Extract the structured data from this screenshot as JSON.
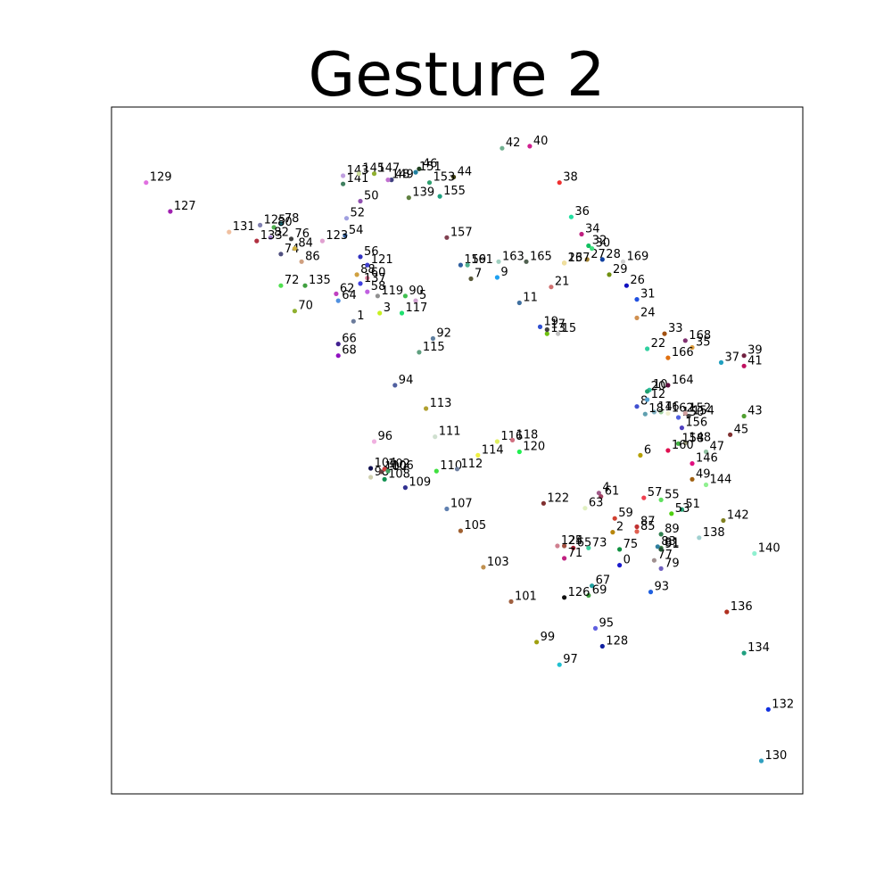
{
  "chart_data": {
    "type": "scatter",
    "title": "Gesture 2",
    "xlabel": "",
    "ylabel": "",
    "axes_visible": false,
    "grid": false,
    "xlim": [
      0,
      100
    ],
    "ylim": [
      0,
      100
    ],
    "points": [
      {
        "label": "0",
        "x": 73.5,
        "y": 33.3,
        "color": "#1a1acc"
      },
      {
        "label": "1",
        "x": 35.0,
        "y": 68.8,
        "color": "#6b7b9b"
      },
      {
        "label": "2",
        "x": 72.5,
        "y": 38.1,
        "color": "#b8860b"
      },
      {
        "label": "3",
        "x": 38.8,
        "y": 70.0,
        "color": "#c8f020"
      },
      {
        "label": "4",
        "x": 70.5,
        "y": 43.8,
        "color": "#a05a8a"
      },
      {
        "label": "5",
        "x": 44.0,
        "y": 71.8,
        "color": "#d0a0d0"
      },
      {
        "label": "6",
        "x": 76.5,
        "y": 49.3,
        "color": "#b5a000"
      },
      {
        "label": "7",
        "x": 52.0,
        "y": 75.0,
        "color": "#5a5a3a"
      },
      {
        "label": "8",
        "x": 76.0,
        "y": 56.4,
        "color": "#4050d0"
      },
      {
        "label": "9",
        "x": 55.8,
        "y": 75.2,
        "color": "#1ea0f0"
      },
      {
        "label": "10",
        "x": 77.8,
        "y": 58.8,
        "color": "#30c0a0"
      },
      {
        "label": "11",
        "x": 59.0,
        "y": 71.5,
        "color": "#4070a0"
      },
      {
        "label": "12",
        "x": 77.5,
        "y": 57.4,
        "color": "#50a0d0"
      },
      {
        "label": "13",
        "x": 63.0,
        "y": 67.0,
        "color": "#70c010"
      },
      {
        "label": "14",
        "x": 78.5,
        "y": 55.6,
        "color": "#80b0c0"
      },
      {
        "label": "15",
        "x": 64.6,
        "y": 67.0,
        "color": "#c0c0c0"
      },
      {
        "label": "16",
        "x": 79.5,
        "y": 55.6,
        "color": "#a0d0a0"
      },
      {
        "label": "17",
        "x": 63.0,
        "y": 67.6,
        "color": "#404040"
      },
      {
        "label": "18",
        "x": 77.2,
        "y": 55.3,
        "color": "#60a0b0"
      },
      {
        "label": "19",
        "x": 62.0,
        "y": 68.0,
        "color": "#3050d0"
      },
      {
        "label": "20",
        "x": 77.5,
        "y": 58.6,
        "color": "#20a070"
      },
      {
        "label": "21",
        "x": 63.6,
        "y": 73.8,
        "color": "#d07070"
      },
      {
        "label": "22",
        "x": 77.5,
        "y": 64.8,
        "color": "#30d0a0"
      },
      {
        "label": "23",
        "x": 65.5,
        "y": 77.3,
        "color": "#d0a020"
      },
      {
        "label": "24",
        "x": 76.0,
        "y": 69.3,
        "color": "#d09050"
      },
      {
        "label": "25",
        "x": 65.5,
        "y": 36.1,
        "color": "#a05040"
      },
      {
        "label": "26",
        "x": 74.5,
        "y": 74.0,
        "color": "#1010c0"
      },
      {
        "label": "27",
        "x": 68.8,
        "y": 77.8,
        "color": "#a08030"
      },
      {
        "label": "28",
        "x": 71.0,
        "y": 77.8,
        "color": "#1040a0"
      },
      {
        "label": "29",
        "x": 72.0,
        "y": 75.6,
        "color": "#709010"
      },
      {
        "label": "30",
        "x": 69.5,
        "y": 79.4,
        "color": "#40e080"
      },
      {
        "label": "31",
        "x": 76.0,
        "y": 72.0,
        "color": "#2050e0"
      },
      {
        "label": "32",
        "x": 69.0,
        "y": 79.8,
        "color": "#10c060"
      },
      {
        "label": "33",
        "x": 80.0,
        "y": 67.0,
        "color": "#a05010"
      },
      {
        "label": "34",
        "x": 68.0,
        "y": 81.5,
        "color": "#c02080"
      },
      {
        "label": "35",
        "x": 84.0,
        "y": 65.0,
        "color": "#e0a040"
      },
      {
        "label": "36",
        "x": 66.5,
        "y": 84.0,
        "color": "#20e0a0"
      },
      {
        "label": "37",
        "x": 88.2,
        "y": 62.8,
        "color": "#20a0c0"
      },
      {
        "label": "38",
        "x": 64.8,
        "y": 89.0,
        "color": "#f03030"
      },
      {
        "label": "39",
        "x": 91.5,
        "y": 63.8,
        "color": "#702040"
      },
      {
        "label": "40",
        "x": 60.5,
        "y": 94.3,
        "color": "#d02090"
      },
      {
        "label": "41",
        "x": 91.5,
        "y": 62.3,
        "color": "#c01060"
      },
      {
        "label": "42",
        "x": 56.5,
        "y": 94.0,
        "color": "#70b090"
      },
      {
        "label": "43",
        "x": 91.5,
        "y": 55.0,
        "color": "#50a030"
      },
      {
        "label": "44",
        "x": 49.5,
        "y": 89.8,
        "color": "#404010"
      },
      {
        "label": "45",
        "x": 89.5,
        "y": 52.3,
        "color": "#803030"
      },
      {
        "label": "46",
        "x": 44.5,
        "y": 91.0,
        "color": "#204020"
      },
      {
        "label": "47",
        "x": 86.0,
        "y": 49.8,
        "color": "#90c0a0"
      },
      {
        "label": "48",
        "x": 40.5,
        "y": 89.4,
        "color": "#404080"
      },
      {
        "label": "49",
        "x": 84.0,
        "y": 45.8,
        "color": "#a06010"
      },
      {
        "label": "50",
        "x": 36.0,
        "y": 86.3,
        "color": "#9050b0"
      },
      {
        "label": "51",
        "x": 82.5,
        "y": 41.4,
        "color": "#20a070"
      },
      {
        "label": "52",
        "x": 34.0,
        "y": 83.8,
        "color": "#a0a0e0"
      },
      {
        "label": "53",
        "x": 81.0,
        "y": 40.8,
        "color": "#50d010"
      },
      {
        "label": "54",
        "x": 33.8,
        "y": 81.3,
        "color": "#3060a0"
      },
      {
        "label": "55",
        "x": 79.5,
        "y": 42.8,
        "color": "#60e060"
      },
      {
        "label": "56",
        "x": 36.0,
        "y": 78.2,
        "color": "#3030c0"
      },
      {
        "label": "57",
        "x": 77.0,
        "y": 43.1,
        "color": "#f04050"
      },
      {
        "label": "58",
        "x": 37.0,
        "y": 73.1,
        "color": "#c060e0"
      },
      {
        "label": "59",
        "x": 72.8,
        "y": 40.1,
        "color": "#d04030"
      },
      {
        "label": "60",
        "x": 37.0,
        "y": 75.1,
        "color": "#e080a0"
      },
      {
        "label": "61",
        "x": 70.8,
        "y": 43.3,
        "color": "#a04060"
      },
      {
        "label": "62",
        "x": 32.5,
        "y": 72.8,
        "color": "#c040c0"
      },
      {
        "label": "63",
        "x": 68.5,
        "y": 41.6,
        "color": "#e0f0c0"
      },
      {
        "label": "64",
        "x": 32.8,
        "y": 71.8,
        "color": "#5090e0"
      },
      {
        "label": "65",
        "x": 66.8,
        "y": 35.8,
        "color": "#a02030"
      },
      {
        "label": "66",
        "x": 32.8,
        "y": 65.5,
        "color": "#402090"
      },
      {
        "label": "67",
        "x": 69.5,
        "y": 30.3,
        "color": "#20a0a0"
      },
      {
        "label": "68",
        "x": 32.8,
        "y": 63.8,
        "color": "#9010c0"
      },
      {
        "label": "69",
        "x": 69.0,
        "y": 28.9,
        "color": "#40a040"
      },
      {
        "label": "70",
        "x": 26.5,
        "y": 70.3,
        "color": "#90b030"
      },
      {
        "label": "71",
        "x": 65.5,
        "y": 34.3,
        "color": "#c02080"
      },
      {
        "label": "72",
        "x": 24.5,
        "y": 74.0,
        "color": "#50e050"
      },
      {
        "label": "73",
        "x": 69.0,
        "y": 35.8,
        "color": "#40d0a0"
      },
      {
        "label": "74",
        "x": 24.5,
        "y": 78.6,
        "color": "#505080"
      },
      {
        "label": "75",
        "x": 73.5,
        "y": 35.6,
        "color": "#109040"
      },
      {
        "label": "76",
        "x": 26.0,
        "y": 80.8,
        "color": "#404040"
      },
      {
        "label": "77",
        "x": 78.5,
        "y": 34.0,
        "color": "#a09090"
      },
      {
        "label": "78",
        "x": 24.5,
        "y": 83.0,
        "color": "#2090a0"
      },
      {
        "label": "79",
        "x": 79.5,
        "y": 32.8,
        "color": "#7060c0"
      },
      {
        "label": "80",
        "x": 23.5,
        "y": 82.5,
        "color": "#50b050"
      },
      {
        "label": "81",
        "x": 79.5,
        "y": 35.8,
        "color": "#509050"
      },
      {
        "label": "82",
        "x": 23.0,
        "y": 81.0,
        "color": "#a080d0"
      },
      {
        "label": "83",
        "x": 79.0,
        "y": 36.0,
        "color": "#3080a0"
      },
      {
        "label": "84",
        "x": 26.5,
        "y": 79.4,
        "color": "#d0b040"
      },
      {
        "label": "85",
        "x": 76.0,
        "y": 38.2,
        "color": "#e06050"
      },
      {
        "label": "86",
        "x": 27.5,
        "y": 77.5,
        "color": "#d0a080"
      },
      {
        "label": "87",
        "x": 76.0,
        "y": 38.9,
        "color": "#c03030"
      },
      {
        "label": "88",
        "x": 35.5,
        "y": 75.6,
        "color": "#d0a040"
      },
      {
        "label": "89",
        "x": 79.5,
        "y": 37.8,
        "color": "#308050"
      },
      {
        "label": "90",
        "x": 42.5,
        "y": 72.5,
        "color": "#40c050"
      },
      {
        "label": "91",
        "x": 79.5,
        "y": 35.6,
        "color": "#205030"
      },
      {
        "label": "92",
        "x": 46.5,
        "y": 66.3,
        "color": "#6080a0"
      },
      {
        "label": "93",
        "x": 78.0,
        "y": 29.4,
        "color": "#2060e0"
      },
      {
        "label": "94",
        "x": 41.0,
        "y": 59.5,
        "color": "#5060a0"
      },
      {
        "label": "95",
        "x": 70.0,
        "y": 24.1,
        "color": "#6060e0"
      },
      {
        "label": "96",
        "x": 38.0,
        "y": 51.3,
        "color": "#f0b0e0"
      },
      {
        "label": "97",
        "x": 64.8,
        "y": 18.8,
        "color": "#20c0d0"
      },
      {
        "label": "98",
        "x": 37.5,
        "y": 46.1,
        "color": "#d0d0b0"
      },
      {
        "label": "99",
        "x": 61.5,
        "y": 22.1,
        "color": "#a0a010"
      },
      {
        "label": "100",
        "x": 39.0,
        "y": 46.9,
        "color": "#604040"
      },
      {
        "label": "101",
        "x": 57.8,
        "y": 28.0,
        "color": "#a06040"
      },
      {
        "label": "102",
        "x": 39.5,
        "y": 47.3,
        "color": "#d04040"
      },
      {
        "label": "103",
        "x": 53.8,
        "y": 33.0,
        "color": "#c09050"
      },
      {
        "label": "104",
        "x": 37.5,
        "y": 47.4,
        "color": "#101050"
      },
      {
        "label": "105",
        "x": 50.5,
        "y": 38.3,
        "color": "#a06030"
      },
      {
        "label": "106",
        "x": 40.0,
        "y": 47.0,
        "color": "#40a060"
      },
      {
        "label": "107",
        "x": 48.5,
        "y": 41.5,
        "color": "#6080b0"
      },
      {
        "label": "108",
        "x": 39.5,
        "y": 45.8,
        "color": "#109050"
      },
      {
        "label": "109",
        "x": 42.5,
        "y": 44.6,
        "color": "#303090"
      },
      {
        "label": "110",
        "x": 47.0,
        "y": 47.0,
        "color": "#40e040"
      },
      {
        "label": "111",
        "x": 46.8,
        "y": 52.0,
        "color": "#d0e0d0"
      },
      {
        "label": "112",
        "x": 50.0,
        "y": 47.3,
        "color": "#7080a0"
      },
      {
        "label": "113",
        "x": 45.5,
        "y": 56.1,
        "color": "#b0a030"
      },
      {
        "label": "114",
        "x": 53.0,
        "y": 49.3,
        "color": "#f0f040"
      },
      {
        "label": "115",
        "x": 44.5,
        "y": 64.3,
        "color": "#60a080"
      },
      {
        "label": "116",
        "x": 55.8,
        "y": 51.3,
        "color": "#e0f060"
      },
      {
        "label": "117",
        "x": 42.0,
        "y": 70.0,
        "color": "#20e070"
      },
      {
        "label": "118",
        "x": 58.0,
        "y": 51.5,
        "color": "#d07080"
      },
      {
        "label": "119",
        "x": 38.5,
        "y": 72.5,
        "color": "#909090"
      },
      {
        "label": "120",
        "x": 59.0,
        "y": 49.8,
        "color": "#20f050"
      },
      {
        "label": "121",
        "x": 37.0,
        "y": 77.0,
        "color": "#4040d0"
      },
      {
        "label": "122",
        "x": 62.5,
        "y": 42.3,
        "color": "#803030"
      },
      {
        "label": "123",
        "x": 30.5,
        "y": 80.5,
        "color": "#e0a0d0"
      },
      {
        "label": "124",
        "x": 64.5,
        "y": 36.1,
        "color": "#d08090"
      },
      {
        "label": "125",
        "x": 21.5,
        "y": 82.8,
        "color": "#8080b0"
      },
      {
        "label": "126",
        "x": 65.5,
        "y": 28.6,
        "color": "#101010"
      },
      {
        "label": "127",
        "x": 8.5,
        "y": 84.8,
        "color": "#a020b0"
      },
      {
        "label": "128",
        "x": 71.0,
        "y": 21.5,
        "color": "#1020a0"
      },
      {
        "label": "129",
        "x": 5.0,
        "y": 89.0,
        "color": "#e070e0"
      },
      {
        "label": "130",
        "x": 94.0,
        "y": 4.8,
        "color": "#30a0c0"
      },
      {
        "label": "131",
        "x": 17.0,
        "y": 81.8,
        "color": "#f0c0a0"
      },
      {
        "label": "132",
        "x": 95.0,
        "y": 12.3,
        "color": "#1030e0"
      },
      {
        "label": "133",
        "x": 21.0,
        "y": 80.5,
        "color": "#b03040"
      },
      {
        "label": "134",
        "x": 91.5,
        "y": 20.5,
        "color": "#20a080"
      },
      {
        "label": "135",
        "x": 28.0,
        "y": 74.0,
        "color": "#40a040"
      },
      {
        "label": "136",
        "x": 89.0,
        "y": 26.5,
        "color": "#b03020"
      },
      {
        "label": "137",
        "x": 36.0,
        "y": 74.3,
        "color": "#4040e0"
      },
      {
        "label": "138",
        "x": 85.0,
        "y": 37.3,
        "color": "#a0d0d0"
      },
      {
        "label": "139",
        "x": 43.0,
        "y": 86.8,
        "color": "#608040"
      },
      {
        "label": "140",
        "x": 93.0,
        "y": 35.0,
        "color": "#90f0d0"
      },
      {
        "label": "141",
        "x": 33.5,
        "y": 88.8,
        "color": "#408060"
      },
      {
        "label": "142",
        "x": 88.5,
        "y": 39.8,
        "color": "#808020"
      },
      {
        "label": "143",
        "x": 33.5,
        "y": 90.0,
        "color": "#c0a0e0"
      },
      {
        "label": "144",
        "x": 86.0,
        "y": 45.0,
        "color": "#90f090"
      },
      {
        "label": "145",
        "x": 35.8,
        "y": 90.3,
        "color": "#d0e0a0"
      },
      {
        "label": "146",
        "x": 84.0,
        "y": 48.1,
        "color": "#e01080"
      },
      {
        "label": "147",
        "x": 38.0,
        "y": 90.3,
        "color": "#90b030"
      },
      {
        "label": "148",
        "x": 83.0,
        "y": 51.1,
        "color": "#a0a080"
      },
      {
        "label": "149",
        "x": 40.0,
        "y": 89.4,
        "color": "#c070d0"
      },
      {
        "label": "150",
        "x": 82.0,
        "y": 54.8,
        "color": "#5060e0"
      },
      {
        "label": "151",
        "x": 44.0,
        "y": 90.5,
        "color": "#2080a0"
      },
      {
        "label": "152",
        "x": 83.0,
        "y": 55.4,
        "color": "#d0a0a0"
      },
      {
        "label": "153",
        "x": 46.0,
        "y": 89.0,
        "color": "#30a070"
      },
      {
        "label": "154",
        "x": 83.5,
        "y": 55.0,
        "color": "#404040"
      },
      {
        "label": "155",
        "x": 47.5,
        "y": 87.0,
        "color": "#20a080"
      },
      {
        "label": "156",
        "x": 82.5,
        "y": 53.3,
        "color": "#5040c0"
      },
      {
        "label": "157",
        "x": 48.5,
        "y": 81.0,
        "color": "#804050"
      },
      {
        "label": "158",
        "x": 82.0,
        "y": 51.0,
        "color": "#40b040"
      },
      {
        "label": "159",
        "x": 50.5,
        "y": 77.0,
        "color": "#3060a0"
      },
      {
        "label": "160",
        "x": 80.5,
        "y": 50.0,
        "color": "#e01050"
      },
      {
        "label": "161",
        "x": 51.5,
        "y": 77.0,
        "color": "#50b090"
      },
      {
        "label": "162",
        "x": 80.5,
        "y": 55.4,
        "color": "#f0f0d0"
      },
      {
        "label": "163",
        "x": 56.0,
        "y": 77.5,
        "color": "#a0d0c0"
      },
      {
        "label": "164",
        "x": 80.5,
        "y": 59.5,
        "color": "#601040"
      },
      {
        "label": "165",
        "x": 60.0,
        "y": 77.5,
        "color": "#506050"
      },
      {
        "label": "166",
        "x": 80.5,
        "y": 63.5,
        "color": "#e07010"
      },
      {
        "label": "167",
        "x": 65.5,
        "y": 77.3,
        "color": "#f0e0a0"
      },
      {
        "label": "168",
        "x": 83.0,
        "y": 66.0,
        "color": "#803070"
      },
      {
        "label": "169",
        "x": 74.0,
        "y": 77.5,
        "color": "#d0d0d0"
      }
    ]
  }
}
